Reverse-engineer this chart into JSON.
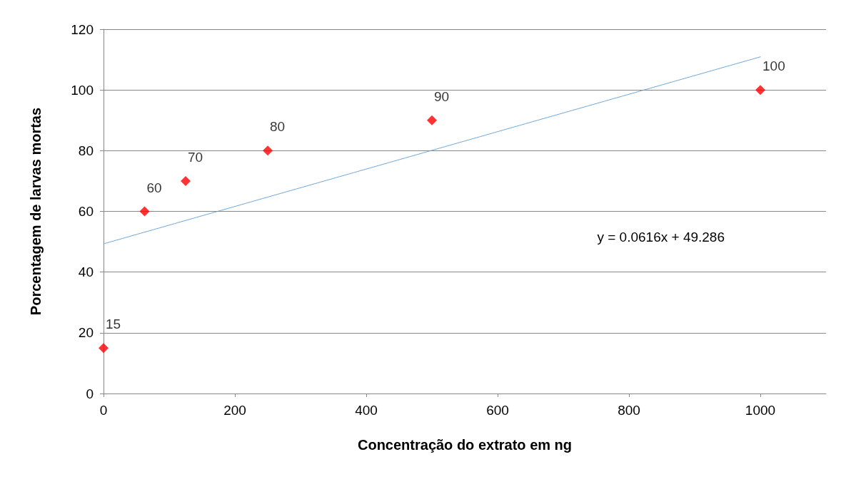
{
  "chart_data": {
    "type": "scatter",
    "xlabel": "Concentração do extrato em ng",
    "ylabel": "Porcentagem de larvas mortas",
    "x": [
      0,
      62.5,
      125,
      250,
      500,
      1000
    ],
    "series": [
      {
        "color": "#ff0000",
        "values": [
          15,
          60,
          70,
          80,
          90,
          100
        ],
        "value_labels": [
          "15",
          "60",
          "70",
          "80",
          "90",
          "100"
        ]
      },
      {
        "type": "line",
        "x": [
          0,
          1000
        ],
        "values": [
          49.3,
          110.9
        ],
        "color": "#5b9bd5",
        "line_style": "dotted",
        "marker": "none"
      }
    ],
    "xlim": [
      0,
      1100
    ],
    "xticks": [
      0,
      200,
      400,
      600,
      800,
      1000
    ],
    "ylim": [
      0,
      120
    ],
    "yticks": [
      0,
      20,
      40,
      60,
      80,
      100,
      120
    ],
    "grid": "y",
    "marker": "diamond",
    "annotations": [
      "y = 0.0616x + 49.286"
    ]
  }
}
